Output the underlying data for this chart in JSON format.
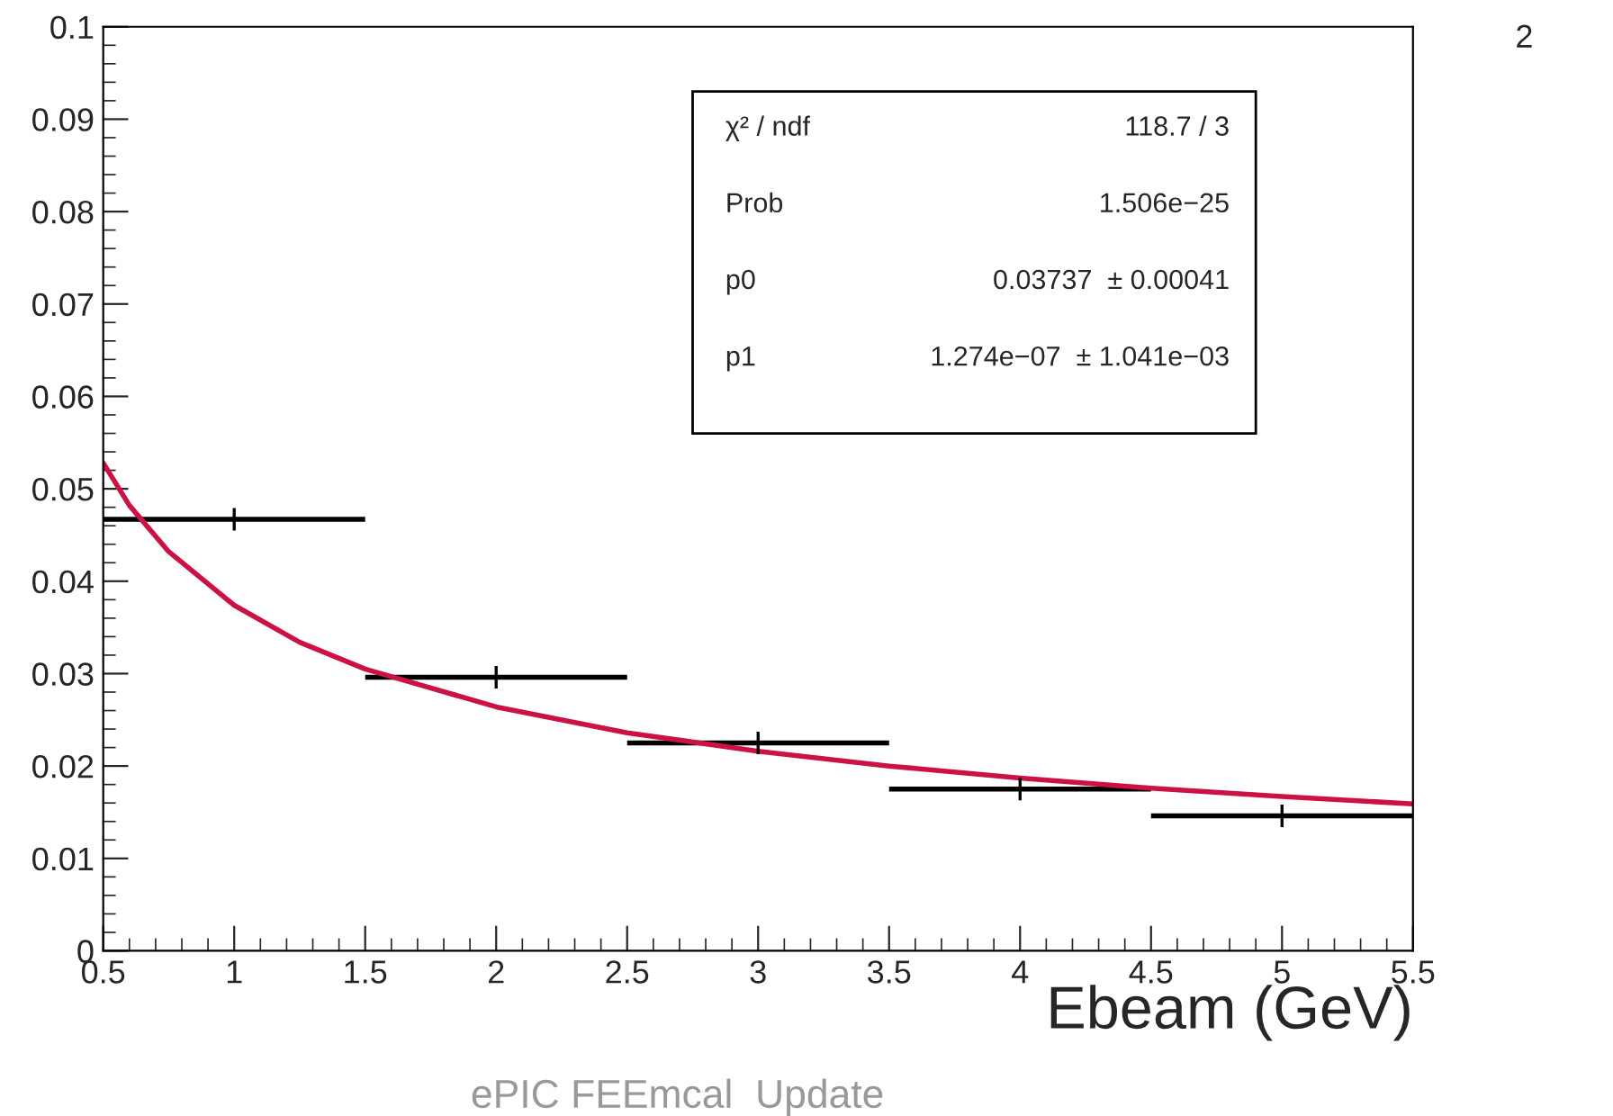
{
  "chart_data": {
    "type": "scatter",
    "xlabel": "Ebeam (GeV)",
    "xlim": [
      0.5,
      5.5
    ],
    "xticks": [
      0.5,
      1,
      1.5,
      2,
      2.5,
      3,
      3.5,
      4,
      4.5,
      5,
      5.5
    ],
    "ylim": [
      0,
      0.1
    ],
    "yticks": [
      0,
      0.01,
      0.02,
      0.03,
      0.04,
      0.05,
      0.06,
      0.07,
      0.08,
      0.09,
      0.1
    ],
    "grid": false,
    "legend": false,
    "series": [
      {
        "color": "#000000",
        "marker": "cross",
        "x": [
          1,
          2,
          3,
          4,
          5
        ],
        "values": [
          0.0467,
          0.0296,
          0.0225,
          0.0175,
          0.0146
        ],
        "xerrors": [
          0.5,
          0.5,
          0.5,
          0.5,
          0.5
        ]
      },
      {
        "type": "line",
        "marker": "none",
        "color": "#cc1144",
        "x": [
          0.5,
          0.6,
          0.75,
          1,
          1.25,
          1.5,
          2,
          2.5,
          3,
          3.5,
          4,
          4.5,
          5,
          5.5
        ],
        "values": [
          0.0528,
          0.0482,
          0.0432,
          0.0374,
          0.0334,
          0.0305,
          0.0264,
          0.0236,
          0.0216,
          0.02,
          0.0187,
          0.0176,
          0.0167,
          0.0159
        ]
      }
    ],
    "annotations": [
      "χ² / ndf",
      "118.7 / 3",
      "Prob",
      "1.506e−25",
      "p0",
      "0.03737  ± 0.00041",
      "p1",
      "1.274e−07  ± 1.041e−03",
      "2",
      "ePIC FEEmcal  Update"
    ]
  }
}
